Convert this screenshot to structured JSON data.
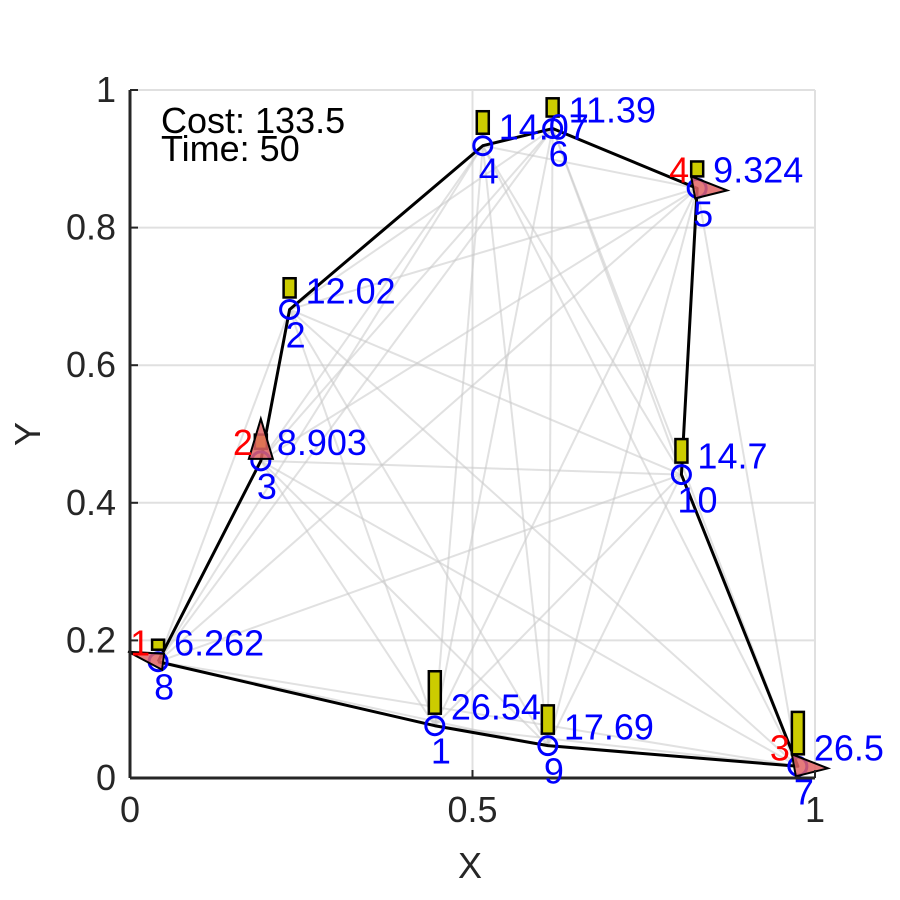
{
  "chart_data": {
    "type": "scatter",
    "xlabel": "X",
    "ylabel": "Y",
    "xlim": [
      0,
      1
    ],
    "ylim": [
      0,
      1
    ],
    "grid": true,
    "x_ticks": [
      {
        "value": 0,
        "label": "0"
      },
      {
        "value": 0.5,
        "label": "0.5"
      },
      {
        "value": 1,
        "label": "1"
      }
    ],
    "y_ticks": [
      {
        "value": 0,
        "label": "0"
      },
      {
        "value": 0.2,
        "label": "0.2"
      },
      {
        "value": 0.4,
        "label": "0.4"
      },
      {
        "value": 0.6,
        "label": "0.6"
      },
      {
        "value": 0.8,
        "label": "0.8"
      },
      {
        "value": 1,
        "label": "1"
      }
    ],
    "info": {
      "cost": "Cost: 133.5",
      "time": "Time: 50"
    },
    "nodes": [
      {
        "id": "1",
        "x": 0.445,
        "y": 0.076,
        "value": 26.54,
        "value_label": "26.54"
      },
      {
        "id": "2",
        "x": 0.233,
        "y": 0.681,
        "value": 12.02,
        "value_label": "12.02"
      },
      {
        "id": "3",
        "x": 0.191,
        "y": 0.461,
        "value": 8.903,
        "value_label": "8.903"
      },
      {
        "id": "4",
        "x": 0.515,
        "y": 0.919,
        "value": 14.07,
        "value_label": "14.07"
      },
      {
        "id": "5",
        "x": 0.828,
        "y": 0.857,
        "value": 9.324,
        "value_label": "9.324"
      },
      {
        "id": "6",
        "x": 0.617,
        "y": 0.944,
        "value": 11.39,
        "value_label": "11.39"
      },
      {
        "id": "7",
        "x": 0.975,
        "y": 0.017,
        "value": 26.5,
        "value_label": "26.5"
      },
      {
        "id": "8",
        "x": 0.041,
        "y": 0.169,
        "value": 6.262,
        "value_label": "6.262"
      },
      {
        "id": "9",
        "x": 0.61,
        "y": 0.047,
        "value": 17.69,
        "value_label": "17.69"
      },
      {
        "id": "10",
        "x": 0.805,
        "y": 0.441,
        "value": 14.7,
        "value_label": "14.7"
      }
    ],
    "route": [
      "8",
      "1",
      "9",
      "7",
      "10",
      "5",
      "6",
      "4",
      "2",
      "3",
      "8"
    ],
    "vehicles": [
      {
        "label": "1",
        "at": "8"
      },
      {
        "label": "2",
        "at": "3"
      },
      {
        "label": "3",
        "at": "7"
      },
      {
        "label": "4",
        "at": "5"
      }
    ],
    "colors": {
      "route": "#000000",
      "mesh": "#c8c8c8",
      "node": "#0000ff",
      "demand_bar": "#cccc00",
      "vehicle": "#e06464",
      "vehicle_label": "#ff0000",
      "grid": "#e0e0e0"
    }
  }
}
